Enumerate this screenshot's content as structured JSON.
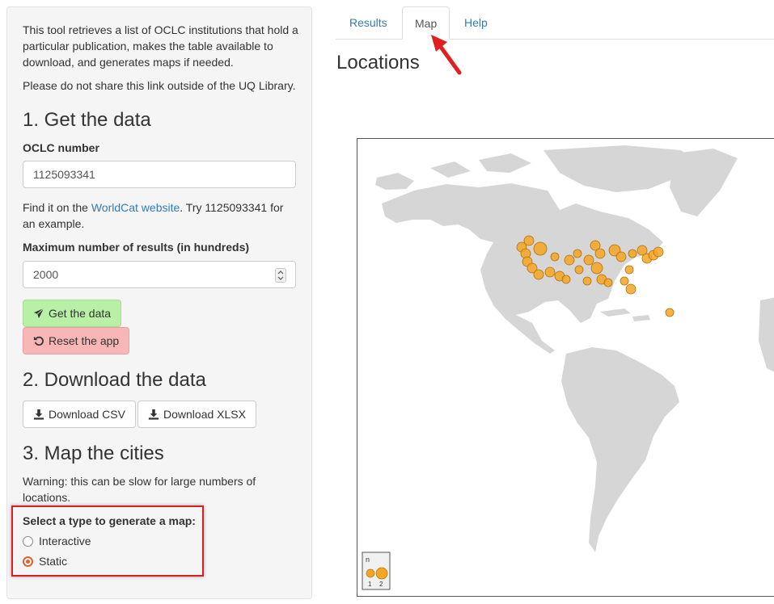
{
  "sidebar": {
    "intro": "This tool retrieves a list of OCLC institutions that hold a particular publication, makes the table available to download, and generates maps if needed.",
    "note": "Please do not share this link outside of the UQ Library.",
    "section1_title": "1. Get the data",
    "oclc_label": "OCLC number",
    "oclc_value": "1125093341",
    "help_prefix": "Find it on the ",
    "help_link": "WorldCat website",
    "help_suffix": ". Try 1125093341 for an example.",
    "max_label": "Maximum number of results (in hundreds)",
    "max_value": "2000",
    "get_button": "Get the data",
    "reset_button": "Reset the app",
    "section2_title": "2. Download the data",
    "csv_button": "Download CSV",
    "xlsx_button": "Download XLSX",
    "section3_title": "3. Map the cities",
    "warning": "Warning: this can be slow for large numbers of locations.",
    "map_type_label": "Select a type to generate a map:",
    "map_type_options": [
      "Interactive",
      "Static"
    ],
    "map_type_selected": "Static"
  },
  "tabs": [
    {
      "label": "Results",
      "active": false
    },
    {
      "label": "Map",
      "active": true
    },
    {
      "label": "Help",
      "active": false
    }
  ],
  "main": {
    "title": "Locations",
    "legend_title": "n",
    "legend_values": [
      "1",
      "2"
    ]
  },
  "colors": {
    "link": "#337ab7",
    "button_green": "#b8f0a6",
    "button_red": "#f8b6b6",
    "highlight": "#d42020",
    "point_fill": "#f5a623",
    "land": "#d6d6d6"
  },
  "icons": {
    "get_button": "paper-plane-icon",
    "reset_button": "undo-icon",
    "download": "download-icon",
    "annotation": "red-arrow-icon"
  }
}
